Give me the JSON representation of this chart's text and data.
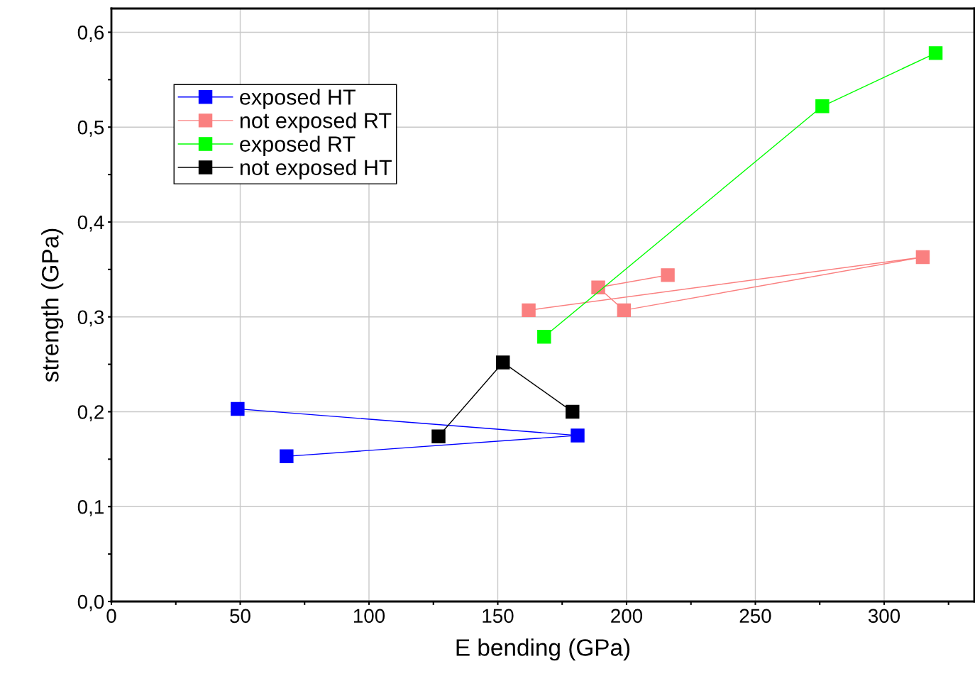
{
  "chart_data": {
    "type": "line",
    "xlabel": "E bending (GPa)",
    "ylabel": "strength (GPa)",
    "xlim": [
      0,
      335
    ],
    "ylim": [
      0,
      0.625
    ],
    "xticks": [
      0,
      {
        "value": 25,
        "label": null
      },
      50,
      {
        "value": 75,
        "label": null
      },
      100,
      {
        "value": 125,
        "label": null
      },
      150,
      {
        "value": 175,
        "label": null
      },
      200,
      {
        "value": 225,
        "label": null
      },
      250,
      {
        "value": 275,
        "label": null
      },
      300,
      {
        "value": 325,
        "label": null
      }
    ],
    "yticks": [
      {
        "value": 0,
        "label": "0,0"
      },
      {
        "value": 0.05,
        "label": null
      },
      {
        "value": 0.1,
        "label": "0,1"
      },
      {
        "value": 0.15,
        "label": null
      },
      {
        "value": 0.2,
        "label": "0,2"
      },
      {
        "value": 0.25,
        "label": null
      },
      {
        "value": 0.3,
        "label": "0,3"
      },
      {
        "value": 0.35,
        "label": null
      },
      {
        "value": 0.4,
        "label": "0,4"
      },
      {
        "value": 0.45,
        "label": null
      },
      {
        "value": 0.5,
        "label": "0,5"
      },
      {
        "value": 0.55,
        "label": null
      },
      {
        "value": 0.6,
        "label": "0,6"
      }
    ],
    "grid": true,
    "legend": "top left",
    "marker": "square",
    "line_style": "solid",
    "series": [
      {
        "name": "exposed HT",
        "color": "#0000ff",
        "x": [
          49,
          181,
          68
        ],
        "values": [
          0.203,
          0.175,
          0.153
        ]
      },
      {
        "name": "not exposed RT",
        "color": "#fa8080",
        "x": [
          162,
          315,
          199,
          189,
          216
        ],
        "values": [
          0.307,
          0.363,
          0.307,
          0.331,
          0.344
        ]
      },
      {
        "name": "exposed RT",
        "color": "#00ff00",
        "x": [
          168,
          276,
          320
        ],
        "values": [
          0.279,
          0.522,
          0.578
        ]
      },
      {
        "name": "not exposed HT",
        "color": "#000000",
        "x": [
          127,
          152,
          179
        ],
        "values": [
          0.174,
          0.252,
          0.2
        ]
      }
    ]
  }
}
